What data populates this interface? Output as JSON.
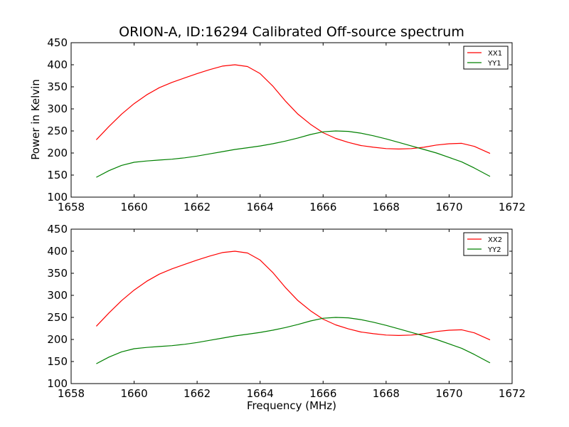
{
  "chart_data": [
    {
      "type": "line",
      "title": "ORION-A, ID:16294 Calibrated Off-source spectrum",
      "xlabel": "",
      "ylabel": "Power in Kelvin",
      "xlim": [
        1658,
        1672
      ],
      "ylim": [
        100,
        450
      ],
      "xticks": [
        1658,
        1660,
        1662,
        1664,
        1666,
        1668,
        1670,
        1672
      ],
      "yticks": [
        100,
        150,
        200,
        250,
        300,
        350,
        400,
        450
      ],
      "grid": false,
      "legend": "top-right",
      "series": [
        {
          "name": "XX1",
          "color": "#ff0000",
          "x": [
            1658.8,
            1659.2,
            1659.6,
            1660.0,
            1660.4,
            1660.8,
            1661.2,
            1661.6,
            1662.0,
            1662.4,
            1662.8,
            1663.2,
            1663.6,
            1664.0,
            1664.4,
            1664.8,
            1665.2,
            1665.6,
            1666.0,
            1666.4,
            1666.8,
            1667.2,
            1667.6,
            1668.0,
            1668.4,
            1668.8,
            1669.2,
            1669.6,
            1670.0,
            1670.4,
            1670.8,
            1671.3
          ],
          "y": [
            230,
            260,
            288,
            312,
            332,
            348,
            360,
            370,
            380,
            389,
            397,
            400,
            396,
            380,
            352,
            318,
            288,
            265,
            246,
            233,
            224,
            217,
            213,
            210,
            209,
            210,
            213,
            218,
            221,
            222,
            215,
            199
          ]
        },
        {
          "name": "YY1",
          "color": "#008000",
          "x": [
            1658.8,
            1659.2,
            1659.6,
            1660.0,
            1660.4,
            1660.8,
            1661.2,
            1661.6,
            1662.0,
            1662.4,
            1662.8,
            1663.2,
            1663.6,
            1664.0,
            1664.4,
            1664.8,
            1665.2,
            1665.6,
            1666.0,
            1666.4,
            1666.8,
            1667.2,
            1667.6,
            1668.0,
            1668.4,
            1668.8,
            1669.2,
            1669.6,
            1670.0,
            1670.4,
            1670.8,
            1671.3
          ],
          "y": [
            145,
            160,
            172,
            179,
            182,
            184,
            186,
            189,
            193,
            198,
            203,
            208,
            212,
            216,
            221,
            227,
            234,
            242,
            248,
            250,
            249,
            245,
            239,
            232,
            224,
            216,
            208,
            200,
            190,
            180,
            166,
            147
          ]
        }
      ]
    },
    {
      "type": "line",
      "title": "",
      "xlabel": "Frequency (MHz)",
      "ylabel": "",
      "xlim": [
        1658,
        1672
      ],
      "ylim": [
        100,
        450
      ],
      "xticks": [
        1658,
        1660,
        1662,
        1664,
        1666,
        1668,
        1670,
        1672
      ],
      "yticks": [
        100,
        150,
        200,
        250,
        300,
        350,
        400,
        450
      ],
      "grid": false,
      "legend": "top-right",
      "series": [
        {
          "name": "XX2",
          "color": "#ff0000",
          "x": [
            1658.8,
            1659.2,
            1659.6,
            1660.0,
            1660.4,
            1660.8,
            1661.2,
            1661.6,
            1662.0,
            1662.4,
            1662.8,
            1663.2,
            1663.6,
            1664.0,
            1664.4,
            1664.8,
            1665.2,
            1665.6,
            1666.0,
            1666.4,
            1666.8,
            1667.2,
            1667.6,
            1668.0,
            1668.4,
            1668.8,
            1669.2,
            1669.6,
            1670.0,
            1670.4,
            1670.8,
            1671.3
          ],
          "y": [
            230,
            260,
            288,
            312,
            332,
            348,
            360,
            370,
            380,
            389,
            397,
            400,
            396,
            380,
            352,
            318,
            288,
            265,
            246,
            233,
            224,
            217,
            213,
            210,
            209,
            210,
            213,
            218,
            221,
            222,
            215,
            199
          ]
        },
        {
          "name": "YY2",
          "color": "#008000",
          "x": [
            1658.8,
            1659.2,
            1659.6,
            1660.0,
            1660.4,
            1660.8,
            1661.2,
            1661.6,
            1662.0,
            1662.4,
            1662.8,
            1663.2,
            1663.6,
            1664.0,
            1664.4,
            1664.8,
            1665.2,
            1665.6,
            1666.0,
            1666.4,
            1666.8,
            1667.2,
            1667.6,
            1668.0,
            1668.4,
            1668.8,
            1669.2,
            1669.6,
            1670.0,
            1670.4,
            1670.8,
            1671.3
          ],
          "y": [
            145,
            160,
            172,
            179,
            182,
            184,
            186,
            189,
            193,
            198,
            203,
            208,
            212,
            216,
            221,
            227,
            234,
            242,
            248,
            250,
            249,
            245,
            239,
            232,
            224,
            216,
            208,
            200,
            190,
            180,
            166,
            147
          ]
        }
      ]
    }
  ]
}
